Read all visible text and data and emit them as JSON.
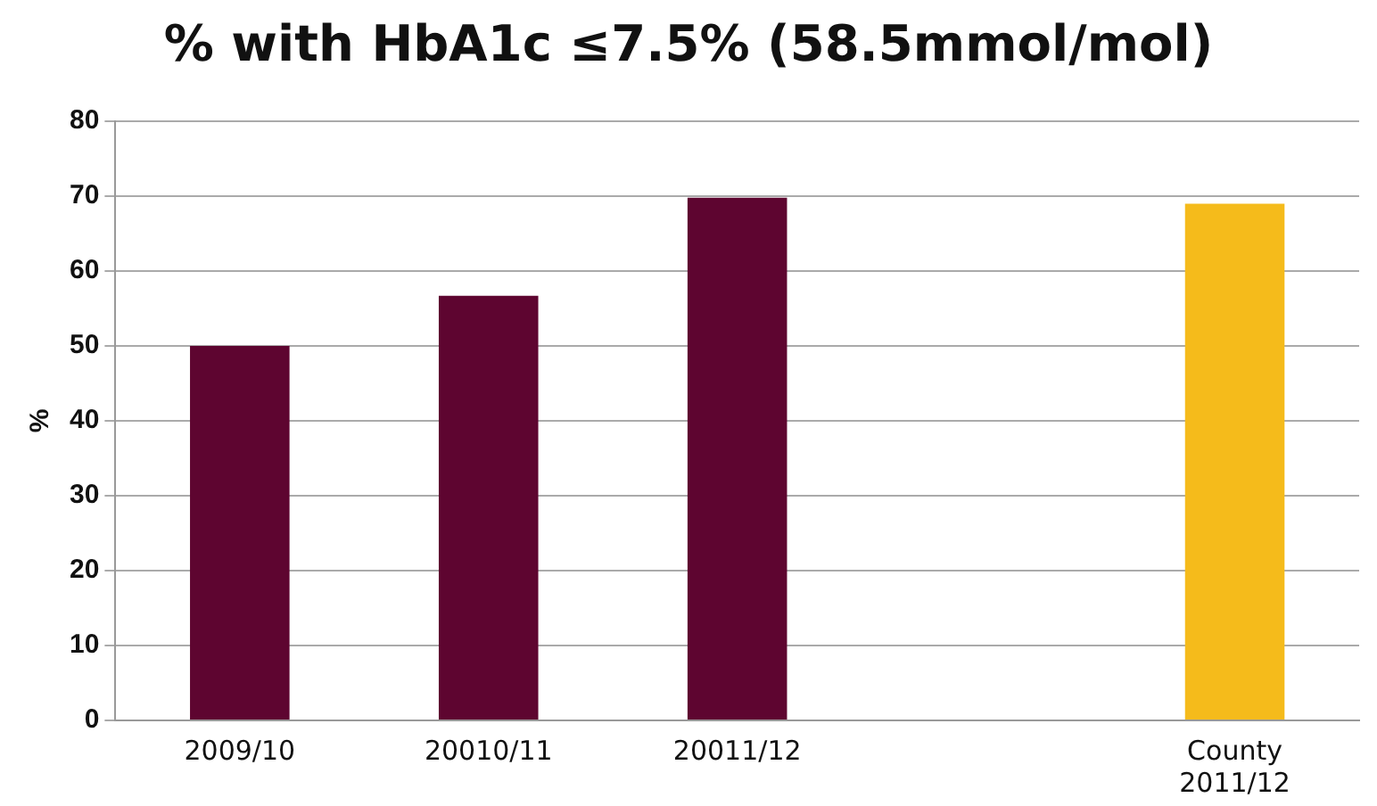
{
  "chart_data": {
    "type": "bar",
    "title": "% with HbA1c ≤7.5%  (58.5mmol/mol)",
    "ylabel": "%",
    "categories": [
      "2009/10",
      "20010/11",
      "20011/12",
      null,
      "County 2011/12"
    ],
    "values": [
      50,
      56.7,
      69.8,
      null,
      69
    ],
    "colors": [
      "#5e0530",
      "#5e0530",
      "#5e0530",
      "#5e0530",
      "#f5bb1b"
    ],
    "ylim": [
      0,
      80
    ],
    "yticks": [
      0,
      10,
      20,
      30,
      40,
      50,
      60,
      70,
      80
    ],
    "grid": "y",
    "legend": false
  }
}
